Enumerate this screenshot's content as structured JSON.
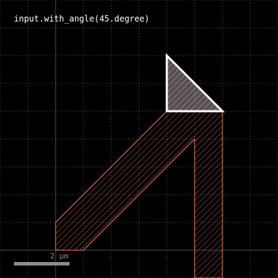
{
  "title": "input.with_angle(45.degree)",
  "scale_bar": {
    "label": "2 µm",
    "length_um": 2
  },
  "colors": {
    "background": "#000000",
    "grid_dots": "#5a5a5a",
    "axis": "#4a4a4a",
    "input_shape": "#ff7f6a",
    "marker": "#ffffff",
    "marker_fill": "#9e8f8f",
    "scale_bar": "#8c8c8c"
  },
  "layers": [
    {
      "name": "input",
      "style": "hatched-outline",
      "polygon": [
        [
          0,
          0
        ],
        [
          1,
          0
        ],
        [
          5,
          4
        ],
        [
          5,
          -1
        ],
        [
          6,
          -1
        ],
        [
          6,
          5
        ],
        [
          4,
          5
        ],
        [
          0,
          1
        ]
      ]
    },
    {
      "name": "with_angle-marker",
      "style": "hatched-thick-outline",
      "polygon": [
        [
          4,
          5
        ],
        [
          6,
          5
        ],
        [
          4,
          7
        ]
      ]
    }
  ]
}
